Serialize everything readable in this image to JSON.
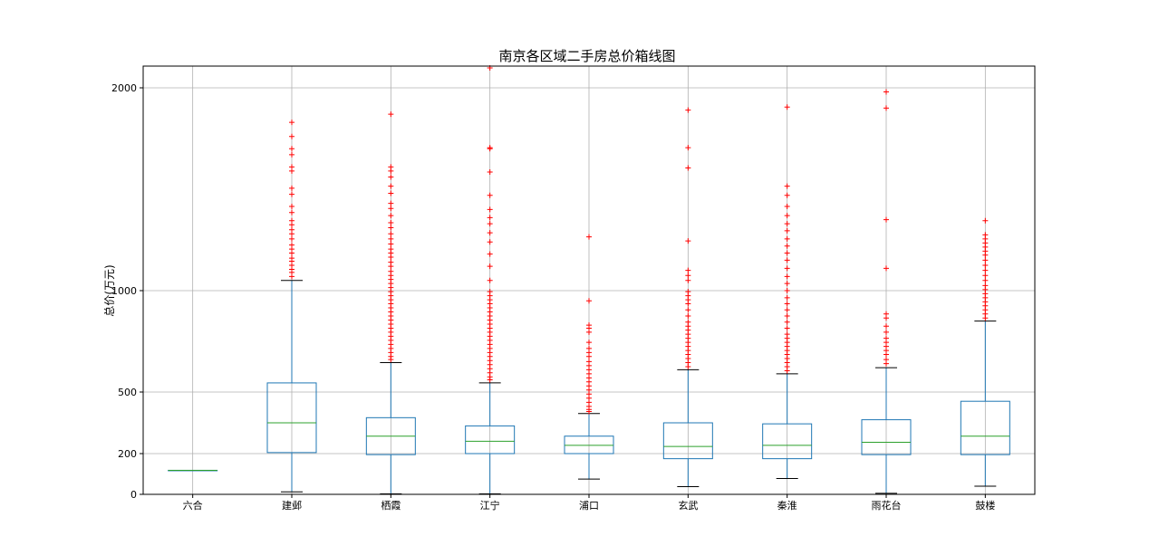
{
  "chart_data": {
    "type": "box",
    "title": "南京各区域二手房总价箱线图",
    "xlabel": "",
    "ylabel": "总价(万元)",
    "yticks": [
      0,
      200,
      500,
      1000,
      2000
    ],
    "ylim": [
      0,
      2100
    ],
    "grid": true,
    "colors": {
      "box": "#1f77b4",
      "median": "#2ca02c",
      "whisker_cap": "#000000",
      "outlier": "#ff0000",
      "grid": "#b0b0b0"
    },
    "categories": [
      "六合",
      "建邺",
      "栖霞",
      "江宁",
      "浦口",
      "玄武",
      "秦淮",
      "雨花台",
      "鼓楼"
    ],
    "boxes": [
      {
        "category": "六合",
        "whislo": 118,
        "q1": 118,
        "med": 118,
        "q3": 118,
        "whishi": 118,
        "fliers": []
      },
      {
        "category": "建邺",
        "whislo": 12,
        "q1": 205,
        "med": 350,
        "q3": 545,
        "whishi": 1050,
        "fliers": [
          1830,
          1760,
          1700,
          1670,
          1610,
          1590,
          1505,
          1475,
          1415,
          1385,
          1345,
          1325,
          1300,
          1280,
          1255,
          1225,
          1205,
          1185,
          1160,
          1145,
          1125,
          1105,
          1090,
          1070
        ]
      },
      {
        "category": "栖霞",
        "whislo": 2,
        "q1": 195,
        "med": 285,
        "q3": 375,
        "whishi": 645,
        "fliers": [
          1870,
          1610,
          1590,
          1560,
          1515,
          1480,
          1430,
          1405,
          1370,
          1335,
          1310,
          1280,
          1255,
          1230,
          1205,
          1185,
          1165,
          1140,
          1120,
          1095,
          1075,
          1055,
          1035,
          1015,
          995,
          975,
          955,
          935,
          915,
          895,
          875,
          855,
          835,
          815,
          795,
          775,
          755,
          735,
          715,
          695,
          675,
          660
        ]
      },
      {
        "category": "江宁",
        "whislo": 2,
        "q1": 200,
        "med": 260,
        "q3": 335,
        "whishi": 545,
        "fliers": [
          2100,
          1705,
          1700,
          1585,
          1470,
          1400,
          1360,
          1330,
          1285,
          1240,
          1180,
          1120,
          1050,
          995,
          975,
          955,
          935,
          915,
          895,
          875,
          855,
          835,
          815,
          795,
          775,
          755,
          735,
          715,
          695,
          675,
          655,
          635,
          615,
          595,
          575,
          560
        ]
      },
      {
        "category": "浦口",
        "whislo": 75,
        "q1": 200,
        "med": 240,
        "q3": 285,
        "whishi": 395,
        "fliers": [
          1265,
          950,
          830,
          815,
          795,
          745,
          715,
          695,
          675,
          650,
          630,
          610,
          590,
          570,
          550,
          530,
          510,
          490,
          470,
          450,
          430,
          415,
          405
        ]
      },
      {
        "category": "玄武",
        "whislo": 38,
        "q1": 175,
        "med": 235,
        "q3": 350,
        "whishi": 610,
        "fliers": [
          1890,
          1705,
          1605,
          1245,
          1100,
          1075,
          1050,
          995,
          975,
          955,
          935,
          905,
          875,
          845,
          825,
          805,
          785,
          765,
          745,
          725,
          705,
          685,
          665,
          645,
          625
        ]
      },
      {
        "category": "秦淮",
        "whislo": 78,
        "q1": 175,
        "med": 240,
        "q3": 345,
        "whishi": 590,
        "fliers": [
          1905,
          1515,
          1470,
          1415,
          1370,
          1330,
          1295,
          1255,
          1220,
          1185,
          1150,
          1110,
          1070,
          1035,
          1000,
          965,
          935,
          905,
          875,
          845,
          815,
          785,
          765,
          745,
          725,
          705,
          685,
          665,
          645,
          625,
          605
        ]
      },
      {
        "category": "雨花台",
        "whislo": 5,
        "q1": 195,
        "med": 255,
        "q3": 365,
        "whishi": 620,
        "fliers": [
          1980,
          1900,
          1350,
          1110,
          885,
          865,
          825,
          795,
          765,
          745,
          725,
          705,
          685,
          660,
          640
        ]
      },
      {
        "category": "鼓楼",
        "whislo": 40,
        "q1": 195,
        "med": 285,
        "q3": 455,
        "whishi": 850,
        "fliers": [
          1345,
          1275,
          1255,
          1235,
          1215,
          1195,
          1175,
          1150,
          1125,
          1100,
          1075,
          1050,
          1025,
          1005,
          985,
          965,
          945,
          925,
          905,
          885,
          865
        ]
      }
    ]
  }
}
